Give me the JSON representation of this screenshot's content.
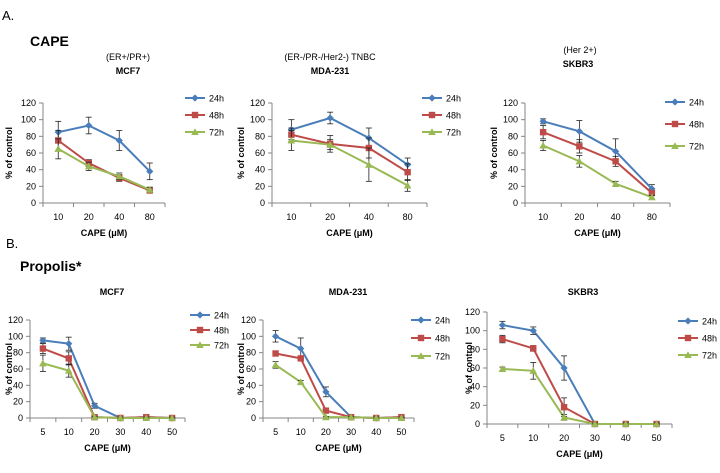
{
  "section_a_label": "A.",
  "section_b_label": "B.",
  "group_a_title": "CAPE",
  "group_b_title": "Propolis*",
  "colors": {
    "24h": "#4a7ebb",
    "48h": "#be4b48",
    "72h": "#98b954",
    "axis": "#868686"
  },
  "chart_data": [
    {
      "type": "line",
      "subtitle": "(ER+/PR+)",
      "title": "MCF7",
      "xlabel": "CAPE  (μM)",
      "ylabel": "% of control",
      "categories": [
        "10",
        "20",
        "40",
        "80"
      ],
      "ylim": [
        0,
        120
      ],
      "yticks": [
        0,
        20,
        40,
        60,
        80,
        100,
        120
      ],
      "legend_position": "right",
      "series": [
        {
          "name": "24h",
          "values": [
            85,
            93,
            75,
            38
          ],
          "err": [
            13,
            10,
            12,
            10
          ]
        },
        {
          "name": "48h",
          "values": [
            75,
            48,
            30,
            15
          ],
          "err": [
            12,
            4,
            4,
            3
          ]
        },
        {
          "name": "72h",
          "values": [
            65,
            44,
            32,
            16
          ],
          "err": [
            12,
            5,
            4,
            3
          ]
        }
      ]
    },
    {
      "type": "line",
      "subtitle": "(ER-/PR-/Her2-)  TNBC",
      "title": "MDA-231",
      "xlabel": "CAPE  (μM)",
      "ylabel": "% of control",
      "categories": [
        "10",
        "20",
        "40",
        "80"
      ],
      "ylim": [
        0,
        120
      ],
      "yticks": [
        0,
        20,
        40,
        60,
        80,
        100,
        120
      ],
      "legend_position": "right",
      "series": [
        {
          "name": "24h",
          "values": [
            88,
            102,
            78,
            46
          ],
          "err": [
            12,
            7,
            12,
            8
          ]
        },
        {
          "name": "48h",
          "values": [
            82,
            71,
            66,
            37
          ],
          "err": [
            8,
            10,
            12,
            10
          ]
        },
        {
          "name": "72h",
          "values": [
            75,
            70,
            46,
            21
          ],
          "err": [
            12,
            6,
            20,
            7
          ]
        }
      ]
    },
    {
      "type": "line",
      "subtitle": "(Her 2+)",
      "title": "SKBR3",
      "xlabel": "CAPE  (μM)",
      "ylabel": "% of control",
      "categories": [
        "10",
        "20",
        "40",
        "80"
      ],
      "ylim": [
        0,
        120
      ],
      "yticks": [
        0,
        20,
        40,
        60,
        80,
        100,
        120
      ],
      "legend_position": "right",
      "series": [
        {
          "name": "24h",
          "values": [
            98,
            86,
            62,
            17
          ],
          "err": [
            3,
            13,
            15,
            5
          ]
        },
        {
          "name": "48h",
          "values": [
            85,
            68,
            50,
            12
          ],
          "err": [
            8,
            8,
            6,
            3
          ]
        },
        {
          "name": "72h",
          "values": [
            69,
            50,
            23,
            7
          ],
          "err": [
            6,
            7,
            3,
            2
          ]
        }
      ]
    },
    {
      "type": "line",
      "subtitle": "",
      "title": "MCF7",
      "xlabel": "CAPE  (μM)",
      "ylabel": "% of control",
      "categories": [
        "5",
        "10",
        "20",
        "30",
        "40",
        "50"
      ],
      "ylim": [
        0,
        120
      ],
      "yticks": [
        0,
        20,
        40,
        60,
        80,
        100,
        120
      ],
      "legend_position": "right",
      "series": [
        {
          "name": "24h",
          "values": [
            95,
            91,
            15,
            0,
            1,
            0
          ],
          "err": [
            3,
            8,
            3,
            1,
            1,
            1
          ]
        },
        {
          "name": "48h",
          "values": [
            85,
            73,
            1,
            0,
            1,
            0
          ],
          "err": [
            6,
            8,
            1,
            1,
            1,
            1
          ]
        },
        {
          "name": "72h",
          "values": [
            67,
            58,
            1,
            0,
            0,
            0
          ],
          "err": [
            10,
            8,
            1,
            1,
            1,
            1
          ]
        }
      ]
    },
    {
      "type": "line",
      "subtitle": "",
      "title": "MDA-231",
      "xlabel": "CAPE  (μM)",
      "ylabel": "% of control",
      "categories": [
        "5",
        "10",
        "20",
        "30",
        "40",
        "50"
      ],
      "ylim": [
        0,
        120
      ],
      "yticks": [
        0,
        20,
        40,
        60,
        80,
        100,
        120
      ],
      "legend_position": "right",
      "series": [
        {
          "name": "24h",
          "values": [
            100,
            85,
            32,
            1,
            0,
            1
          ],
          "err": [
            7,
            13,
            6,
            1,
            1,
            1
          ]
        },
        {
          "name": "48h",
          "values": [
            79,
            73,
            9,
            1,
            0,
            1
          ],
          "err": [
            2,
            2,
            2,
            1,
            1,
            1
          ]
        },
        {
          "name": "72h",
          "values": [
            65,
            44,
            1,
            1,
            0,
            0
          ],
          "err": [
            4,
            2,
            1,
            1,
            1,
            1
          ]
        }
      ]
    },
    {
      "type": "line",
      "subtitle": "",
      "title": "SKBR3",
      "xlabel": "CAPE  (μM)",
      "ylabel": "% of control",
      "categories": [
        "5",
        "10",
        "20",
        "30",
        "40",
        "50"
      ],
      "ylim": [
        0,
        120
      ],
      "yticks": [
        0,
        20,
        40,
        60,
        80,
        100,
        120
      ],
      "legend_position": "right",
      "series": [
        {
          "name": "24h",
          "values": [
            106,
            100,
            60,
            0,
            0,
            0
          ],
          "err": [
            4,
            4,
            13,
            1,
            1,
            1
          ]
        },
        {
          "name": "48h",
          "values": [
            91,
            81,
            18,
            0,
            0,
            0
          ],
          "err": [
            4,
            3,
            10,
            1,
            1,
            1
          ]
        },
        {
          "name": "72h",
          "values": [
            59,
            57,
            7,
            0,
            0,
            0
          ],
          "err": [
            2,
            9,
            3,
            1,
            1,
            1
          ]
        }
      ]
    }
  ]
}
